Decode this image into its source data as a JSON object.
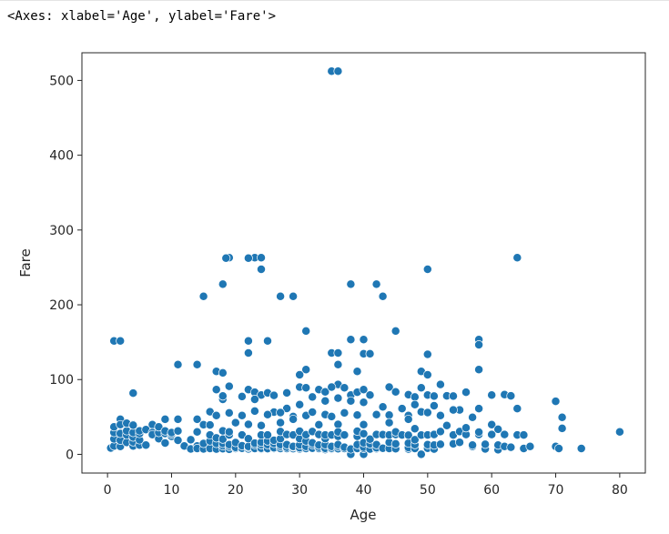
{
  "output_text": "<Axes: xlabel='Age', ylabel='Fare'>",
  "chart_data": {
    "type": "scatter",
    "xlabel": "Age",
    "ylabel": "Fare",
    "xlim": [
      -4,
      84
    ],
    "ylim": [
      -25,
      537
    ],
    "xticks": [
      0,
      10,
      20,
      30,
      40,
      50,
      60,
      70,
      80
    ],
    "yticks": [
      0,
      100,
      200,
      300,
      400,
      500
    ],
    "grid": false,
    "point_color": "#1f77b4",
    "points": [
      [
        35,
        512.3
      ],
      [
        36,
        512.3
      ],
      [
        1,
        151.6
      ],
      [
        2,
        151.6
      ],
      [
        23,
        263
      ],
      [
        24,
        263
      ],
      [
        19,
        263
      ],
      [
        18.5,
        262.4
      ],
      [
        22,
        262.4
      ],
      [
        64,
        263
      ],
      [
        24,
        247.5
      ],
      [
        50,
        247.5
      ],
      [
        18,
        227.5
      ],
      [
        38,
        227.5
      ],
      [
        42,
        227.5
      ],
      [
        15,
        211.3
      ],
      [
        27,
        211.3
      ],
      [
        29,
        211.3
      ],
      [
        43,
        211.3
      ],
      [
        31,
        164.9
      ],
      [
        45,
        164.9
      ],
      [
        22,
        151.6
      ],
      [
        25,
        151.6
      ],
      [
        38,
        153.5
      ],
      [
        40,
        153.5
      ],
      [
        58,
        153.5
      ],
      [
        58,
        146.5
      ],
      [
        22,
        135.6
      ],
      [
        35,
        135.6
      ],
      [
        36,
        135.6
      ],
      [
        40,
        134.5
      ],
      [
        41,
        134.5
      ],
      [
        50,
        133.7
      ],
      [
        11,
        120
      ],
      [
        14,
        120
      ],
      [
        36,
        120
      ],
      [
        17,
        110.9
      ],
      [
        18,
        108.9
      ],
      [
        31,
        113.3
      ],
      [
        30,
        106.4
      ],
      [
        49,
        110.9
      ],
      [
        39,
        110.9
      ],
      [
        58,
        113.3
      ],
      [
        36,
        93.5
      ],
      [
        50,
        106.4
      ],
      [
        52,
        93.5
      ],
      [
        4,
        81.9
      ],
      [
        17,
        86.5
      ],
      [
        19,
        91.1
      ],
      [
        22,
        86.5
      ],
      [
        23,
        83.2
      ],
      [
        24,
        79.2
      ],
      [
        25,
        82.2
      ],
      [
        26,
        78.9
      ],
      [
        28,
        82.2
      ],
      [
        30,
        90
      ],
      [
        31,
        89.1
      ],
      [
        33,
        86.5
      ],
      [
        34,
        83.5
      ],
      [
        35,
        90
      ],
      [
        37,
        89.1
      ],
      [
        38,
        79.2
      ],
      [
        39,
        83.2
      ],
      [
        40,
        86.5
      ],
      [
        41,
        79.2
      ],
      [
        44,
        90
      ],
      [
        45,
        83.5
      ],
      [
        47,
        79.7
      ],
      [
        48,
        76.7
      ],
      [
        49,
        89.1
      ],
      [
        50,
        79.2
      ],
      [
        51,
        77.9
      ],
      [
        53,
        78.3
      ],
      [
        54,
        77.9
      ],
      [
        56,
        83.2
      ],
      [
        60,
        79.2
      ],
      [
        62,
        80
      ],
      [
        63,
        78.3
      ],
      [
        70,
        71
      ],
      [
        71,
        49.5
      ],
      [
        64,
        61.2
      ],
      [
        18,
        73.5
      ],
      [
        18,
        78
      ],
      [
        21,
        77.3
      ],
      [
        23,
        73.5
      ],
      [
        26,
        56.5
      ],
      [
        28,
        61.4
      ],
      [
        30,
        66.6
      ],
      [
        32,
        76.7
      ],
      [
        34,
        71.3
      ],
      [
        36,
        75.2
      ],
      [
        38,
        71.3
      ],
      [
        40,
        69.5
      ],
      [
        43,
        63.4
      ],
      [
        46,
        61.2
      ],
      [
        48,
        66.6
      ],
      [
        51,
        65
      ],
      [
        55,
        59.4
      ],
      [
        58,
        61.2
      ],
      [
        16,
        57
      ],
      [
        17,
        52
      ],
      [
        19,
        55.4
      ],
      [
        21,
        51.9
      ],
      [
        23,
        57.9
      ],
      [
        25,
        53.1
      ],
      [
        27,
        55.9
      ],
      [
        29,
        50.5
      ],
      [
        31,
        52
      ],
      [
        32,
        56.5
      ],
      [
        34,
        53.1
      ],
      [
        35,
        50.5
      ],
      [
        37,
        55.4
      ],
      [
        39,
        52.6
      ],
      [
        42,
        53.1
      ],
      [
        44,
        52.6
      ],
      [
        47,
        52
      ],
      [
        49,
        56.9
      ],
      [
        50,
        55.9
      ],
      [
        52,
        51.9
      ],
      [
        54,
        59.4
      ],
      [
        57,
        49.5
      ],
      [
        2,
        46.9
      ],
      [
        4,
        39.7
      ],
      [
        7,
        39.7
      ],
      [
        9,
        46.9
      ],
      [
        11,
        46.9
      ],
      [
        14,
        46.9
      ],
      [
        15,
        39.6
      ],
      [
        20,
        42.4
      ],
      [
        22,
        40.1
      ],
      [
        24,
        38.5
      ],
      [
        27,
        42.4
      ],
      [
        29,
        46.9
      ],
      [
        33,
        39.6
      ],
      [
        36,
        40.1
      ],
      [
        40,
        39.7
      ],
      [
        44,
        42.4
      ],
      [
        47,
        46.9
      ],
      [
        53,
        38.5
      ],
      [
        60,
        39.7
      ],
      [
        61,
        33.5
      ],
      [
        71,
        34.7
      ],
      [
        80,
        30
      ],
      [
        0.5,
        8.5
      ],
      [
        1,
        11.1
      ],
      [
        1,
        20.6
      ],
      [
        1,
        29.1
      ],
      [
        1,
        36.8
      ],
      [
        2,
        10.5
      ],
      [
        2,
        18.8
      ],
      [
        2,
        27.9
      ],
      [
        2,
        39.7
      ],
      [
        3,
        15.9
      ],
      [
        3,
        26
      ],
      [
        3,
        31.4
      ],
      [
        3,
        41.6
      ],
      [
        4,
        11.1
      ],
      [
        4,
        16.7
      ],
      [
        4,
        23
      ],
      [
        4,
        29.1
      ],
      [
        4,
        39
      ],
      [
        5,
        12.5
      ],
      [
        5,
        19.3
      ],
      [
        5,
        27.8
      ],
      [
        5,
        31.4
      ],
      [
        6,
        12.5
      ],
      [
        6,
        33
      ],
      [
        7,
        29.1
      ],
      [
        7,
        26.3
      ],
      [
        8,
        21
      ],
      [
        8,
        29.1
      ],
      [
        8,
        36.8
      ],
      [
        9,
        15.2
      ],
      [
        9,
        27.9
      ],
      [
        9,
        31.3
      ],
      [
        10,
        24.1
      ],
      [
        10,
        27
      ],
      [
        10,
        29.1
      ],
      [
        11,
        18.8
      ],
      [
        11,
        31.3
      ],
      [
        12,
        11.2
      ],
      [
        13,
        7.2
      ],
      [
        13,
        19.5
      ],
      [
        14,
        11.2
      ],
      [
        14,
        30.1
      ],
      [
        14,
        7.9
      ],
      [
        15,
        7.2
      ],
      [
        15,
        14.5
      ],
      [
        16,
        7.8
      ],
      [
        16,
        18
      ],
      [
        16,
        26
      ],
      [
        16,
        39.4
      ],
      [
        17,
        7.1
      ],
      [
        17,
        14.5
      ],
      [
        17,
        22
      ],
      [
        18,
        7.5
      ],
      [
        18,
        11.5
      ],
      [
        18,
        14.5
      ],
      [
        18,
        20.2
      ],
      [
        18,
        31.4
      ],
      [
        19,
        6.8
      ],
      [
        19,
        10.5
      ],
      [
        19,
        13
      ],
      [
        19,
        26
      ],
      [
        19,
        30
      ],
      [
        20,
        7.9
      ],
      [
        20,
        9.2
      ],
      [
        20,
        15.7
      ],
      [
        21,
        7.7
      ],
      [
        21,
        8.1
      ],
      [
        21,
        11.5
      ],
      [
        21,
        26
      ],
      [
        22,
        7.2
      ],
      [
        22,
        9.3
      ],
      [
        22,
        10.5
      ],
      [
        22,
        21
      ],
      [
        23,
        7.9
      ],
      [
        23,
        13
      ],
      [
        23,
        15
      ],
      [
        24,
        7.1
      ],
      [
        24,
        8.1
      ],
      [
        24,
        13
      ],
      [
        24,
        16.1
      ],
      [
        24,
        26
      ],
      [
        25,
        7.2
      ],
      [
        25,
        7.7
      ],
      [
        25,
        13
      ],
      [
        25,
        17.8
      ],
      [
        25,
        26
      ],
      [
        26,
        7.8
      ],
      [
        26,
        8.7
      ],
      [
        26,
        14.5
      ],
      [
        26,
        18.8
      ],
      [
        27,
        7.9
      ],
      [
        27,
        10.5
      ],
      [
        27,
        13
      ],
      [
        27,
        21
      ],
      [
        27,
        30.5
      ],
      [
        28,
        7.2
      ],
      [
        28,
        7.9
      ],
      [
        28,
        9.5
      ],
      [
        28,
        13
      ],
      [
        28,
        26.6
      ],
      [
        29,
        7.7
      ],
      [
        29,
        9.8
      ],
      [
        29,
        10.5
      ],
      [
        29,
        26
      ],
      [
        30,
        7.2
      ],
      [
        30,
        8.7
      ],
      [
        30,
        12.7
      ],
      [
        30,
        21
      ],
      [
        30,
        31
      ],
      [
        31,
        7.8
      ],
      [
        31,
        10.5
      ],
      [
        31,
        18
      ],
      [
        31,
        26.2
      ],
      [
        32,
        7.9
      ],
      [
        32,
        8.1
      ],
      [
        32,
        13
      ],
      [
        32,
        15.5
      ],
      [
        32,
        30.5
      ],
      [
        33,
        7.9
      ],
      [
        33,
        9.5
      ],
      [
        33,
        12.3
      ],
      [
        33,
        26.6
      ],
      [
        34,
        6.5
      ],
      [
        34,
        8
      ],
      [
        34,
        13
      ],
      [
        34,
        21
      ],
      [
        34,
        26
      ],
      [
        35,
        7.1
      ],
      [
        35,
        8.1
      ],
      [
        35,
        10.5
      ],
      [
        35,
        26
      ],
      [
        36,
        7.5
      ],
      [
        36,
        10.5
      ],
      [
        36,
        13
      ],
      [
        36,
        24.2
      ],
      [
        36,
        30
      ],
      [
        37,
        7.9
      ],
      [
        37,
        9.6
      ],
      [
        37,
        26
      ],
      [
        38,
        0
      ],
      [
        38,
        7.9
      ],
      [
        38,
        7.1
      ],
      [
        39,
        7.9
      ],
      [
        39,
        13
      ],
      [
        39,
        24.2
      ],
      [
        39,
        31
      ],
      [
        40,
        0
      ],
      [
        40,
        7.9
      ],
      [
        40,
        9.5
      ],
      [
        40,
        15.5
      ],
      [
        40,
        27.7
      ],
      [
        41,
        7.1
      ],
      [
        41,
        14.1
      ],
      [
        41,
        20.2
      ],
      [
        42,
        7.6
      ],
      [
        42,
        8.7
      ],
      [
        42,
        13
      ],
      [
        42,
        26.6
      ],
      [
        43,
        8.1
      ],
      [
        43,
        26.3
      ],
      [
        44,
        7.9
      ],
      [
        44,
        16.1
      ],
      [
        44,
        26
      ],
      [
        45,
        7.5
      ],
      [
        45,
        14.1
      ],
      [
        45,
        26.6
      ],
      [
        45,
        30
      ],
      [
        46,
        26
      ],
      [
        47,
        7.1
      ],
      [
        47,
        9
      ],
      [
        47,
        15
      ],
      [
        47,
        25.6
      ],
      [
        48,
        7.9
      ],
      [
        48,
        13
      ],
      [
        48,
        19.5
      ],
      [
        48,
        34.4
      ],
      [
        49,
        0
      ],
      [
        49,
        25.9
      ],
      [
        50,
        8.1
      ],
      [
        50,
        13
      ],
      [
        50,
        26
      ],
      [
        51,
        7.1
      ],
      [
        51,
        12.5
      ],
      [
        51,
        26.6
      ],
      [
        52,
        13.5
      ],
      [
        52,
        30.5
      ],
      [
        54,
        14
      ],
      [
        54,
        26
      ],
      [
        55,
        16
      ],
      [
        55,
        30.5
      ],
      [
        56,
        26.6
      ],
      [
        56,
        35.5
      ],
      [
        57,
        10.5
      ],
      [
        57,
        12.4
      ],
      [
        58,
        26.6
      ],
      [
        58,
        29.7
      ],
      [
        59,
        7.2
      ],
      [
        59,
        13.5
      ],
      [
        60,
        26.6
      ],
      [
        61,
        6.2
      ],
      [
        61,
        12.4
      ],
      [
        62,
        10.5
      ],
      [
        62,
        26.6
      ],
      [
        63,
        9.6
      ],
      [
        64,
        26
      ],
      [
        65,
        7.8
      ],
      [
        65,
        26
      ],
      [
        66,
        10.5
      ],
      [
        70,
        10.5
      ],
      [
        70.5,
        7.8
      ],
      [
        74,
        7.8
      ]
    ]
  }
}
